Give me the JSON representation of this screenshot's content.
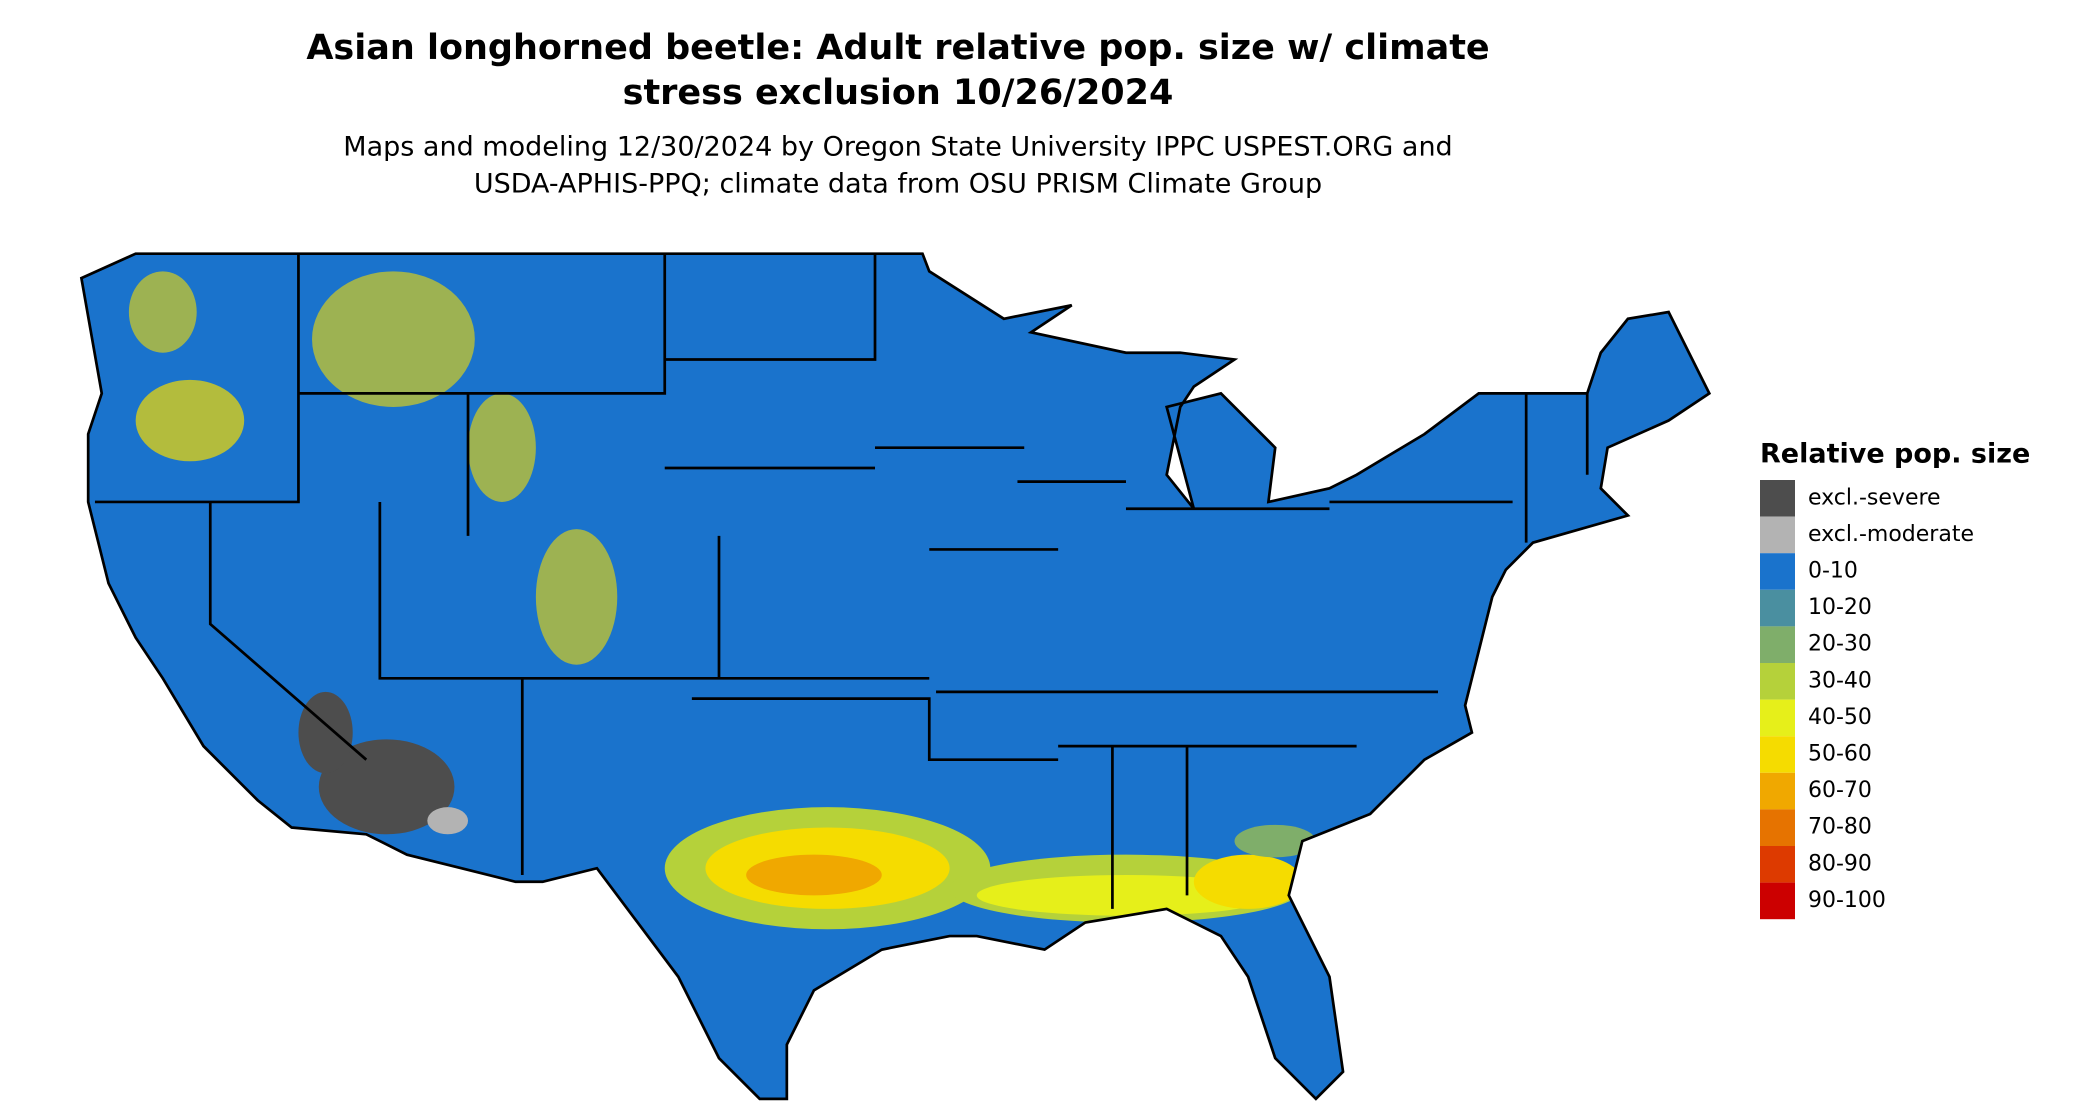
{
  "header": {
    "title_lines": [
      "Asian longhorned beetle: Adult relative pop. size w/ climate",
      "stress exclusion 10/26/2024"
    ],
    "subtitle_lines": [
      "Maps and modeling 12/30/2024 by Oregon State University IPPC USPEST.ORG and",
      "USDA-APHIS-PPQ; climate data from OSU PRISM Climate Group"
    ]
  },
  "legend": {
    "title": "Relative pop. size",
    "items": [
      {
        "label": "excl.-severe",
        "color": "#4d4d4d"
      },
      {
        "label": "excl.-moderate",
        "color": "#b3b3b3"
      },
      {
        "label": "0-10",
        "color": "#1a73cc"
      },
      {
        "label": "10-20",
        "color": "#4a8fa0"
      },
      {
        "label": "20-30",
        "color": "#7fae6a"
      },
      {
        "label": "30-40",
        "color": "#b5d13a"
      },
      {
        "label": "40-50",
        "color": "#e6ef1a"
      },
      {
        "label": "50-60",
        "color": "#f5dc00"
      },
      {
        "label": "60-70",
        "color": "#f0a800"
      },
      {
        "label": "70-80",
        "color": "#e67300"
      },
      {
        "label": "80-90",
        "color": "#dd3a00"
      },
      {
        "label": "90-100",
        "color": "#cc0000"
      }
    ]
  }
}
